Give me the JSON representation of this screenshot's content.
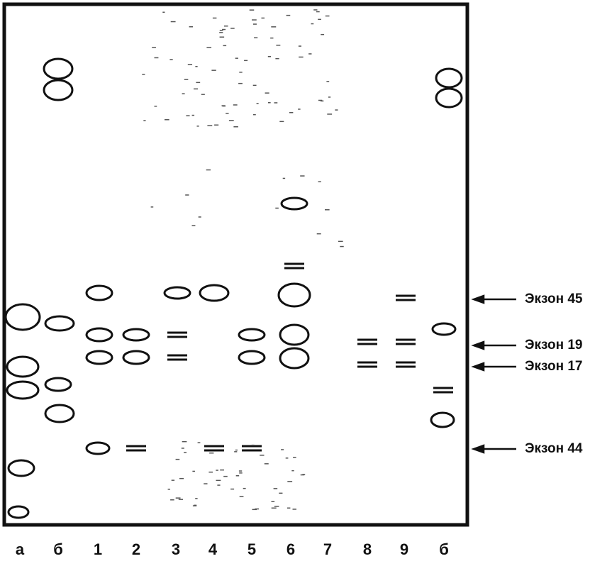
{
  "figure": {
    "lanes": [
      "а",
      "б",
      "1",
      "2",
      "3",
      "4",
      "5",
      "6",
      "7",
      "8",
      "9",
      "б"
    ],
    "markers": [
      "Экзон 45",
      "Экзон 19",
      "Экзон 17",
      "Экзон 44"
    ]
  }
}
